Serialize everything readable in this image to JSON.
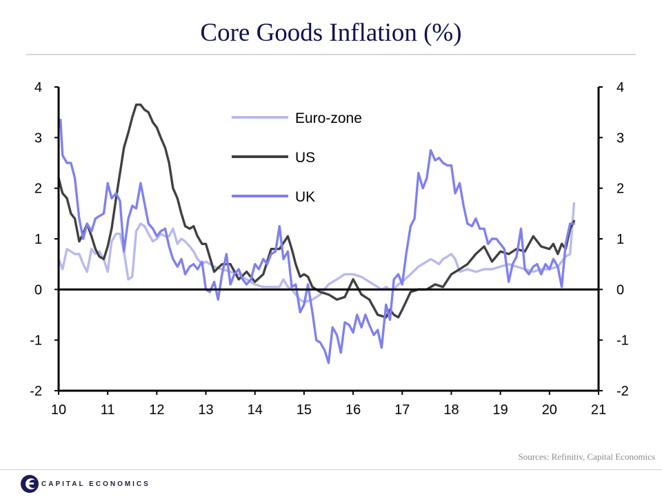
{
  "title": "Core Goods Inflation (%)",
  "sources": "Sources: Refinitiv, Capital Economics",
  "logo_text": "CAPITAL ECONOMICS",
  "chart_data": {
    "type": "line",
    "title": "Core Goods Inflation (%)",
    "xlabel": "",
    "ylabel": "",
    "xlim": [
      10,
      21
    ],
    "ylim": [
      -2,
      4
    ],
    "x_ticks": [
      "10",
      "11",
      "12",
      "13",
      "14",
      "15",
      "16",
      "17",
      "18",
      "19",
      "20",
      "21"
    ],
    "y_ticks_left": [
      "4",
      "3",
      "2",
      "1",
      "0",
      "-1",
      "-2"
    ],
    "y_ticks_right": [
      "4",
      "3",
      "2",
      "1",
      "0",
      "-1",
      "-2"
    ],
    "legend_position": "top-center",
    "series": [
      {
        "name": "Euro-zone",
        "color": "#b9b9f0",
        "x": [
          10.0,
          10.08,
          10.17,
          10.25,
          10.33,
          10.42,
          10.5,
          10.58,
          10.67,
          10.75,
          10.83,
          10.92,
          11.0,
          11.08,
          11.17,
          11.25,
          11.33,
          11.42,
          11.5,
          11.58,
          11.67,
          11.75,
          11.83,
          11.92,
          12.0,
          12.08,
          12.17,
          12.25,
          12.33,
          12.42,
          12.5,
          12.58,
          12.67,
          12.75,
          12.83,
          12.92,
          13.0,
          13.17,
          13.33,
          13.5,
          13.67,
          13.83,
          14.0,
          14.17,
          14.33,
          14.5,
          14.58,
          14.67,
          14.75,
          14.83,
          14.92,
          15.0,
          15.17,
          15.33,
          15.5,
          15.67,
          15.83,
          16.0,
          16.17,
          16.33,
          16.5,
          16.58,
          16.67,
          16.75,
          16.83,
          16.92,
          17.0,
          17.17,
          17.33,
          17.5,
          17.58,
          17.67,
          17.75,
          17.83,
          17.92,
          18.0,
          18.08,
          18.17,
          18.33,
          18.5,
          18.67,
          18.83,
          19.0,
          19.17,
          19.33,
          19.5,
          19.67,
          19.83,
          20.0,
          20.17,
          20.33,
          20.42,
          20.5
        ],
        "values": [
          0.6,
          0.4,
          0.8,
          0.75,
          0.7,
          0.7,
          0.5,
          0.35,
          0.8,
          0.7,
          0.75,
          0.6,
          0.35,
          0.95,
          1.1,
          1.1,
          0.75,
          0.2,
          0.25,
          1.15,
          1.3,
          1.25,
          1.1,
          0.95,
          1.0,
          1.1,
          1.05,
          1.05,
          1.2,
          0.9,
          1.0,
          0.95,
          0.85,
          0.75,
          0.6,
          0.5,
          0.55,
          0.45,
          0.4,
          0.35,
          0.3,
          0.2,
          0.1,
          0.05,
          0.05,
          0.05,
          0.2,
          0.05,
          0.0,
          -0.1,
          -0.2,
          -0.25,
          -0.2,
          -0.1,
          0.1,
          0.2,
          0.3,
          0.3,
          0.25,
          0.15,
          0.05,
          0.0,
          0.05,
          0.0,
          0.0,
          0.1,
          0.15,
          0.3,
          0.45,
          0.55,
          0.6,
          0.55,
          0.5,
          0.6,
          0.65,
          0.7,
          0.6,
          0.35,
          0.4,
          0.35,
          0.4,
          0.4,
          0.45,
          0.5,
          0.45,
          0.4,
          0.35,
          0.4,
          0.4,
          0.45,
          0.65,
          0.7,
          1.7
        ]
      },
      {
        "name": "US",
        "color": "#404040",
        "x": [
          10.0,
          10.08,
          10.17,
          10.25,
          10.33,
          10.42,
          10.5,
          10.58,
          10.67,
          10.75,
          10.83,
          10.92,
          11.0,
          11.08,
          11.17,
          11.25,
          11.33,
          11.42,
          11.5,
          11.58,
          11.67,
          11.75,
          11.83,
          11.92,
          12.0,
          12.08,
          12.17,
          12.25,
          12.33,
          12.42,
          12.5,
          12.58,
          12.67,
          12.75,
          12.83,
          12.92,
          13.0,
          13.17,
          13.33,
          13.5,
          13.67,
          13.83,
          14.0,
          14.17,
          14.33,
          14.5,
          14.67,
          14.75,
          14.83,
          14.92,
          15.0,
          15.08,
          15.17,
          15.33,
          15.5,
          15.67,
          15.83,
          16.0,
          16.17,
          16.33,
          16.5,
          16.67,
          16.75,
          16.83,
          16.92,
          17.0,
          17.17,
          17.33,
          17.5,
          17.67,
          17.83,
          18.0,
          18.17,
          18.33,
          18.5,
          18.67,
          18.83,
          19.0,
          19.17,
          19.33,
          19.5,
          19.67,
          19.83,
          20.0,
          20.08,
          20.17,
          20.25,
          20.33,
          20.42,
          20.5
        ],
        "values": [
          2.2,
          1.9,
          1.8,
          1.5,
          1.4,
          0.95,
          1.1,
          1.3,
          1.05,
          0.8,
          0.65,
          0.6,
          0.85,
          1.2,
          1.8,
          2.3,
          2.8,
          3.1,
          3.4,
          3.65,
          3.65,
          3.55,
          3.5,
          3.3,
          3.2,
          3.0,
          2.8,
          2.5,
          2.0,
          1.8,
          1.5,
          1.25,
          1.2,
          1.25,
          1.05,
          0.9,
          0.9,
          0.35,
          0.5,
          0.5,
          0.2,
          0.35,
          0.15,
          0.3,
          0.8,
          0.8,
          1.05,
          0.8,
          0.5,
          0.25,
          0.3,
          0.25,
          0.05,
          -0.05,
          -0.1,
          -0.2,
          -0.15,
          0.2,
          -0.1,
          -0.2,
          -0.5,
          -0.55,
          -0.4,
          -0.5,
          -0.55,
          -0.4,
          -0.05,
          0.0,
          0.0,
          0.1,
          0.05,
          0.3,
          0.4,
          0.5,
          0.7,
          0.85,
          0.55,
          0.75,
          0.7,
          0.8,
          0.75,
          1.05,
          0.85,
          0.8,
          0.9,
          0.7,
          0.9,
          0.8,
          1.2,
          1.35
        ]
      },
      {
        "name": "UK",
        "color": "#8080f0",
        "x": [
          10.0,
          10.04,
          10.08,
          10.17,
          10.25,
          10.33,
          10.42,
          10.5,
          10.58,
          10.67,
          10.75,
          10.83,
          10.92,
          11.0,
          11.08,
          11.17,
          11.25,
          11.33,
          11.42,
          11.5,
          11.58,
          11.67,
          11.75,
          11.83,
          11.92,
          12.0,
          12.08,
          12.17,
          12.25,
          12.33,
          12.42,
          12.5,
          12.58,
          12.67,
          12.75,
          12.83,
          12.92,
          13.0,
          13.08,
          13.17,
          13.25,
          13.33,
          13.42,
          13.5,
          13.58,
          13.67,
          13.75,
          13.83,
          13.92,
          14.0,
          14.08,
          14.17,
          14.25,
          14.33,
          14.42,
          14.5,
          14.58,
          14.67,
          14.75,
          14.83,
          14.92,
          15.0,
          15.08,
          15.17,
          15.25,
          15.33,
          15.42,
          15.5,
          15.58,
          15.67,
          15.75,
          15.83,
          15.92,
          16.0,
          16.08,
          16.17,
          16.25,
          16.33,
          16.42,
          16.5,
          16.58,
          16.67,
          16.75,
          16.83,
          16.92,
          17.0,
          17.08,
          17.17,
          17.25,
          17.33,
          17.42,
          17.5,
          17.58,
          17.67,
          17.75,
          17.83,
          17.92,
          18.0,
          18.08,
          18.17,
          18.25,
          18.33,
          18.42,
          18.5,
          18.58,
          18.67,
          18.75,
          18.83,
          18.92,
          19.0,
          19.08,
          19.17,
          19.25,
          19.33,
          19.42,
          19.5,
          19.58,
          19.67,
          19.75,
          19.83,
          19.92,
          20.0,
          20.08,
          20.17,
          20.25,
          20.33,
          20.42,
          20.5
        ],
        "values": [
          3.2,
          3.35,
          2.65,
          2.5,
          2.5,
          2.2,
          1.4,
          1.0,
          1.3,
          1.15,
          1.4,
          1.45,
          1.5,
          2.1,
          1.8,
          1.9,
          1.75,
          0.75,
          1.4,
          1.65,
          1.6,
          2.1,
          1.7,
          1.3,
          1.2,
          1.05,
          1.15,
          1.2,
          0.85,
          0.6,
          0.45,
          0.6,
          0.3,
          0.45,
          0.5,
          0.4,
          0.55,
          0.0,
          -0.05,
          0.15,
          -0.2,
          0.3,
          0.7,
          0.1,
          0.3,
          0.4,
          0.2,
          0.1,
          0.2,
          0.5,
          0.4,
          0.6,
          0.5,
          0.7,
          0.75,
          1.25,
          0.6,
          0.75,
          0.05,
          0.1,
          -0.45,
          -0.3,
          0.1,
          -0.45,
          -1.0,
          -1.05,
          -1.2,
          -1.45,
          -0.75,
          -0.9,
          -1.25,
          -0.65,
          -0.7,
          -0.85,
          -0.5,
          -0.75,
          -0.5,
          -0.7,
          -0.9,
          -0.8,
          -1.15,
          -0.3,
          -0.6,
          0.2,
          0.3,
          0.1,
          0.7,
          1.25,
          1.4,
          2.3,
          2.0,
          2.2,
          2.75,
          2.55,
          2.6,
          2.5,
          2.45,
          2.45,
          1.9,
          2.1,
          1.65,
          1.3,
          1.25,
          1.4,
          1.2,
          1.2,
          0.9,
          1.0,
          1.0,
          0.9,
          0.8,
          0.15,
          0.5,
          0.65,
          1.2,
          0.4,
          0.3,
          0.45,
          0.5,
          0.3,
          0.5,
          0.4,
          0.6,
          0.45,
          0.05,
          0.9,
          1.3,
          1.3
        ]
      }
    ]
  }
}
